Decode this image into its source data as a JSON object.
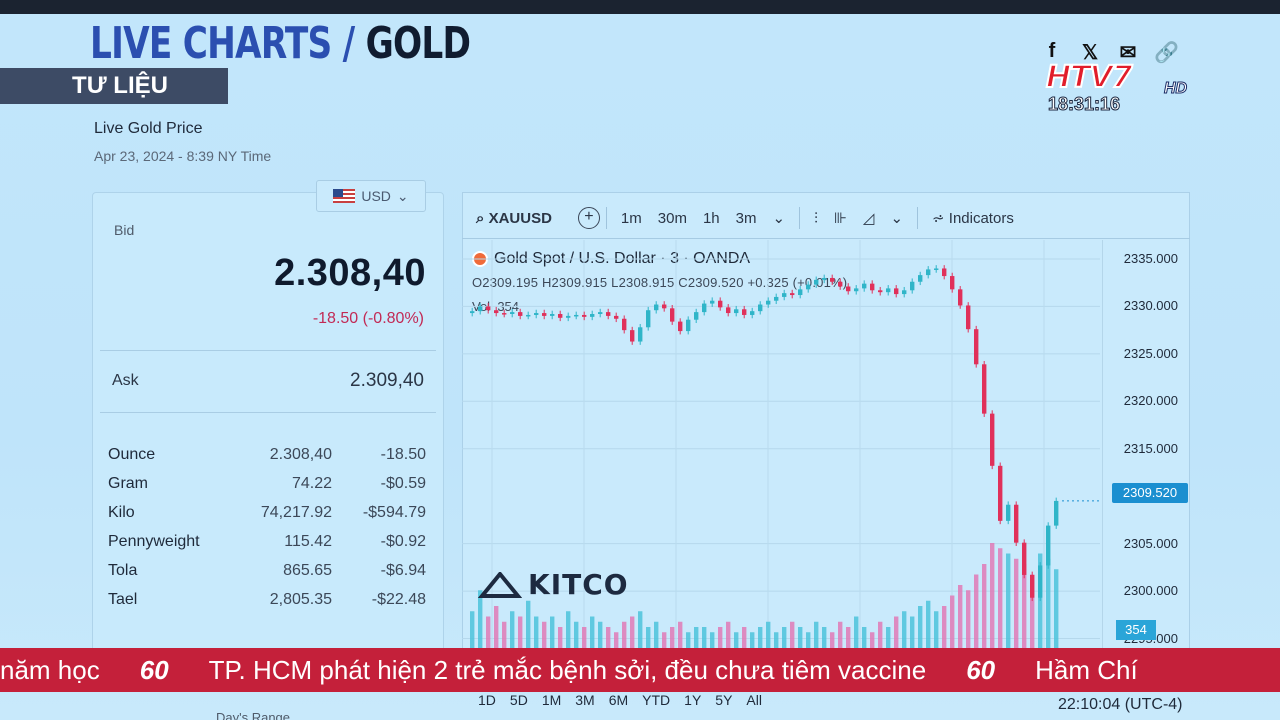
{
  "headline": {
    "part1": "LIVE CHARTS / ",
    "part2": "GOLD"
  },
  "segment_tag": "TƯ LIỆU",
  "broadcaster": {
    "logo": "HTV7",
    "hd": "HD",
    "clock": "18:31:16",
    "social_icons": [
      "facebook-icon",
      "x-icon",
      "mail-icon",
      "link-icon"
    ]
  },
  "price_panel": {
    "title": "Live Gold Price",
    "date": "Apr 23, 2024 - 8:39 NY Time",
    "currency": "USD",
    "bid_label": "Bid",
    "bid": "2.308,40",
    "bid_change": "-18.50 (-0.80%)",
    "ask_label": "Ask",
    "ask": "2.309,40",
    "units": [
      {
        "name": "Ounce",
        "value": "2.308,40",
        "change": "-18.50"
      },
      {
        "name": "Gram",
        "value": "74.22",
        "change": "-$0.59"
      },
      {
        "name": "Kilo",
        "value": "74,217.92",
        "change": "-$594.79"
      },
      {
        "name": "Pennyweight",
        "value": "115.42",
        "change": "-$0.92"
      },
      {
        "name": "Tola",
        "value": "865.65",
        "change": "-$6.94"
      },
      {
        "name": "Tael",
        "value": "2,805.35",
        "change": "-$22.48"
      }
    ],
    "days_range": "Day's Range"
  },
  "toolbar": {
    "symbol": "XAUUSD",
    "add": "+",
    "intervals": [
      "1m",
      "30m",
      "1h",
      "3m"
    ],
    "indicators": "Indicators"
  },
  "chart_legend": {
    "title": "Gold Spot / U.S. Dollar · 3 · OANDA",
    "ohlc": "O2309.195 H2309.915 L2308.915 C2309.520 +0.325 (+0.01%)",
    "vol_label": "Vol",
    "vol_value": "354"
  },
  "kitco": "KITCO",
  "yaxis": {
    "ticks": [
      "2335.000",
      "2330.000",
      "2325.000",
      "2320.000",
      "2315.000",
      "2305.000",
      "2300.000",
      "2295.000"
    ],
    "last_price": "2309.520",
    "vol_tag": "354"
  },
  "ranges": [
    "1D",
    "5D",
    "1M",
    "3M",
    "6M",
    "YTD",
    "1Y",
    "5Y",
    "All"
  ],
  "chart_clock": "22:10:04 (UTC-4)",
  "ticker": {
    "left": "năm học",
    "main": "TP. HCM phát hiện 2 trẻ mắc bệnh sởi, đều chưa tiêm vaccine",
    "right": "Hầm Chí",
    "logo": "60"
  },
  "chart_data": {
    "type": "candlestick",
    "title": "Gold Spot / U.S. Dollar · 3 · OANDA",
    "ylim": [
      2294,
      2337
    ],
    "y_ticks": [
      2335,
      2330,
      2325,
      2320,
      2315,
      2305,
      2300,
      2295
    ],
    "close_profile": [
      2329.5,
      2330.0,
      2329.6,
      2329.3,
      2329.2,
      2329.4,
      2329.0,
      2329.1,
      2329.3,
      2329.0,
      2329.2,
      2328.8,
      2329.0,
      2329.1,
      2328.9,
      2329.2,
      2329.4,
      2329.0,
      2328.7,
      2327.5,
      2326.3,
      2327.8,
      2329.6,
      2330.2,
      2329.8,
      2328.4,
      2327.4,
      2328.6,
      2329.4,
      2330.3,
      2330.6,
      2329.9,
      2329.3,
      2329.7,
      2329.1,
      2329.5,
      2330.2,
      2330.6,
      2331.0,
      2331.4,
      2331.2,
      2331.8,
      2332.3,
      2332.8,
      2333.0,
      2332.6,
      2332.1,
      2331.6,
      2331.9,
      2332.4,
      2331.7,
      2331.5,
      2331.9,
      2331.3,
      2331.7,
      2332.6,
      2333.3,
      2333.9,
      2334.0,
      2333.2,
      2331.8,
      2330.1,
      2327.6,
      2323.9,
      2318.7,
      2313.2,
      2307.4,
      2309.1,
      2305.1,
      2301.7,
      2299.3,
      2302.7,
      2306.9,
      2309.5
    ],
    "volume_profile": [
      0.35,
      0.55,
      0.3,
      0.4,
      0.25,
      0.35,
      0.3,
      0.45,
      0.3,
      0.25,
      0.3,
      0.2,
      0.35,
      0.25,
      0.2,
      0.3,
      0.25,
      0.2,
      0.15,
      0.25,
      0.3,
      0.35,
      0.2,
      0.25,
      0.15,
      0.2,
      0.25,
      0.15,
      0.2,
      0.2,
      0.15,
      0.2,
      0.25,
      0.15,
      0.2,
      0.15,
      0.2,
      0.25,
      0.15,
      0.2,
      0.25,
      0.2,
      0.15,
      0.25,
      0.2,
      0.15,
      0.25,
      0.2,
      0.3,
      0.2,
      0.15,
      0.25,
      0.2,
      0.3,
      0.35,
      0.3,
      0.4,
      0.45,
      0.35,
      0.4,
      0.5,
      0.6,
      0.55,
      0.7,
      0.8,
      1.0,
      0.95,
      0.9,
      0.85,
      0.8,
      0.7,
      0.9,
      0.85,
      0.75
    ],
    "colors": {
      "up": "#2fb5c8",
      "down": "#e0305a",
      "vol_up": "#4cc3da",
      "vol_down": "#e07ab6"
    }
  }
}
